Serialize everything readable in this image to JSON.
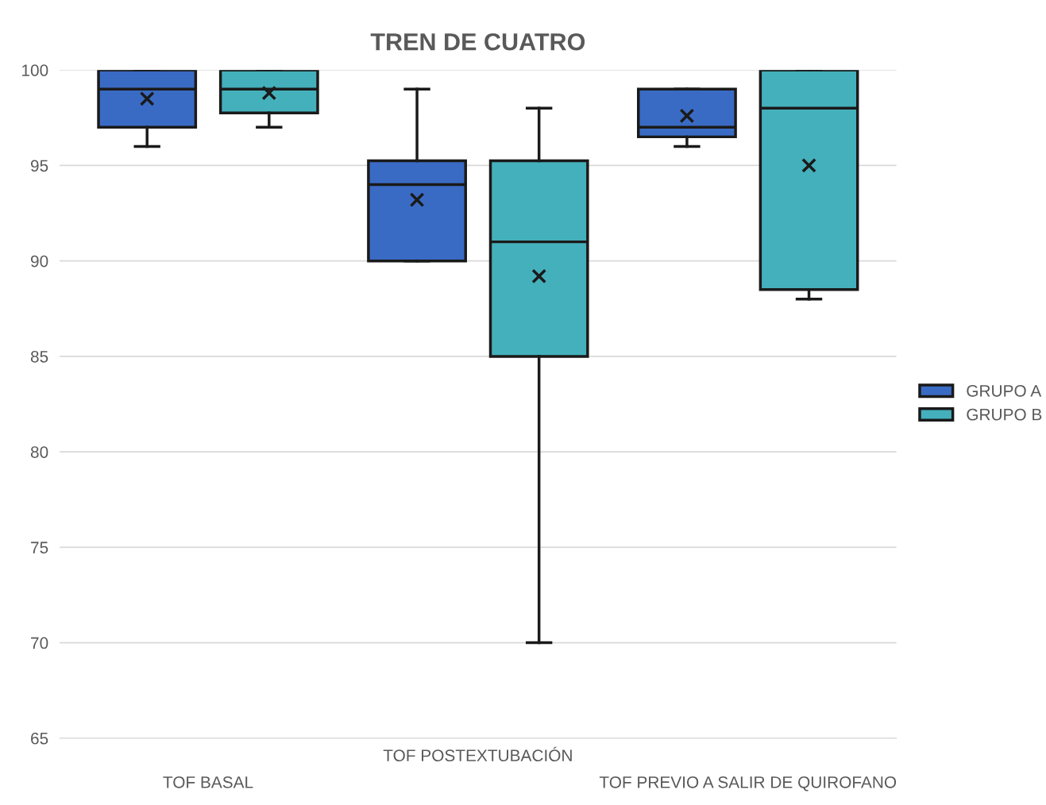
{
  "chart_data": {
    "type": "box",
    "title": "TREN DE CUATRO",
    "categories": [
      "TOF BASAL",
      "TOF POSTEXTUBACIÓN",
      "TOF PREVIO A SALIR DE QUIROFANO"
    ],
    "series": [
      {
        "name": "GRUPO A",
        "color": "#3a6bc4",
        "boxes": [
          {
            "low": 96,
            "q1": 97,
            "median": 99,
            "q3": 100,
            "high": 100,
            "mean": 98.5
          },
          {
            "low": 90,
            "q1": 90,
            "median": 94,
            "q3": 95.25,
            "high": 99,
            "mean": 93.2
          },
          {
            "low": 96,
            "q1": 96.5,
            "median": 97,
            "q3": 99,
            "high": 99,
            "mean": 97.6
          }
        ]
      },
      {
        "name": "GRUPO B",
        "color": "#44b0bc",
        "boxes": [
          {
            "low": 97,
            "q1": 97.75,
            "median": 99,
            "q3": 100,
            "high": 100,
            "mean": 98.8
          },
          {
            "low": 70,
            "q1": 85,
            "median": 91,
            "q3": 95.25,
            "high": 98,
            "mean": 89.2
          },
          {
            "low": 88,
            "q1": 88.5,
            "median": 98,
            "q3": 100,
            "high": 100,
            "mean": 95
          }
        ]
      }
    ],
    "ylim": [
      65,
      100
    ],
    "yticks": [
      65,
      70,
      75,
      80,
      85,
      90,
      95,
      100
    ],
    "grid": "y",
    "legend": "right",
    "marker": "cross"
  }
}
